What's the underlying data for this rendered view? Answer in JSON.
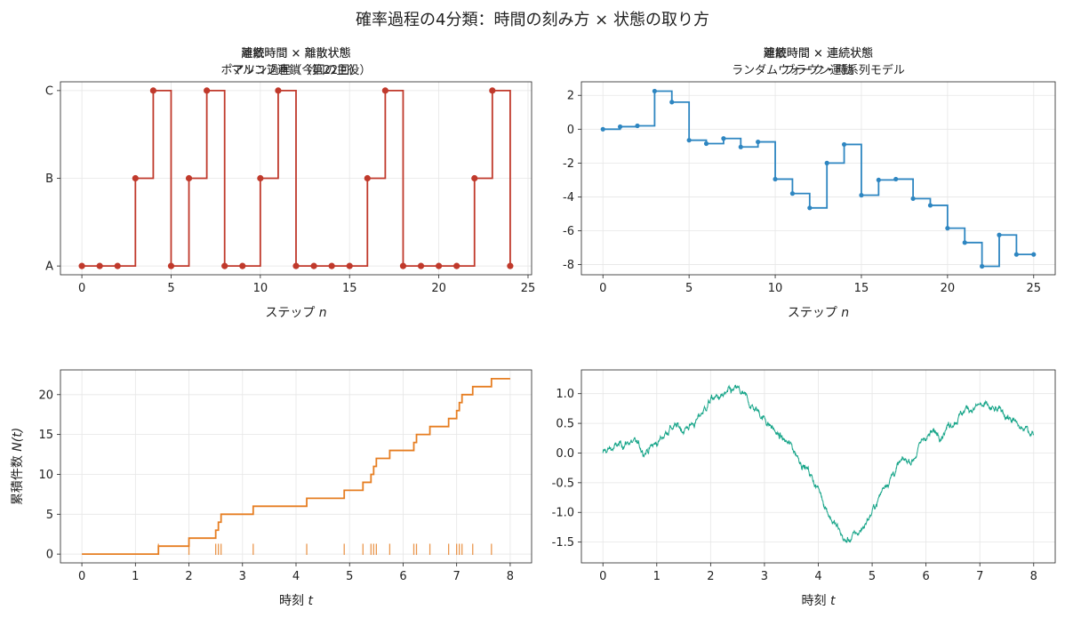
{
  "suptitle": "確率過程の4分類：時間の刻み方 × 状態の取り方",
  "chart_data": [
    {
      "type": "line",
      "step": true,
      "markers": true,
      "title": "離散時間 × 離散状態",
      "subtitle": "マルコフ連鎖（第22回）",
      "xlabel": "ステップ",
      "xlabel_var": "n",
      "ylabel": "",
      "xlim": [
        -1.2,
        25.2
      ],
      "ylim": [
        -0.1,
        2.1
      ],
      "xticks": [
        0,
        5,
        10,
        15,
        20,
        25
      ],
      "yticks": [
        0,
        1,
        2
      ],
      "ytick_labels": [
        "A",
        "B",
        "C"
      ],
      "grid": true,
      "color": "#c0392b",
      "x": [
        0,
        1,
        2,
        3,
        4,
        5,
        6,
        7,
        8,
        9,
        10,
        11,
        12,
        13,
        14,
        15,
        16,
        17,
        18,
        19,
        20,
        21,
        22,
        23,
        24
      ],
      "y": [
        0,
        0,
        0,
        1,
        2,
        0,
        1,
        2,
        0,
        0,
        1,
        2,
        0,
        0,
        0,
        0,
        1,
        2,
        0,
        0,
        0,
        0,
        1,
        2,
        0
      ]
    },
    {
      "type": "line",
      "step": true,
      "markers": true,
      "title": "離散時間 × 連続状態",
      "subtitle": "ランダムウォーク・時系列モデル",
      "xlabel": "ステップ",
      "xlabel_var": "n",
      "ylabel": "",
      "xlim": [
        -1.25,
        26.25
      ],
      "ylim": [
        -8.6,
        2.8
      ],
      "xticks": [
        0,
        5,
        10,
        15,
        20,
        25
      ],
      "yticks": [
        2,
        0,
        -2,
        -4,
        -6,
        -8
      ],
      "grid": true,
      "color": "#2e86c1",
      "x": [
        0,
        1,
        2,
        3,
        4,
        5,
        6,
        7,
        8,
        9,
        10,
        11,
        12,
        13,
        14,
        15,
        16,
        17,
        18,
        19,
        20,
        21,
        22,
        23,
        24,
        25
      ],
      "y": [
        0,
        0.15,
        0.2,
        2.25,
        1.6,
        -0.65,
        -0.85,
        -0.55,
        -1.05,
        -0.75,
        -2.95,
        -3.8,
        -4.65,
        -2.0,
        -0.9,
        -3.9,
        -3.0,
        -2.95,
        -4.1,
        -4.5,
        -5.85,
        -6.7,
        -8.1,
        -6.25,
        -7.4,
        -7.4
      ]
    },
    {
      "type": "line",
      "step": true,
      "title": "連続時間 × 離散状態",
      "subtitle": "ポアソン過程（今回の主役）",
      "xlabel": "時刻",
      "xlabel_var": "t",
      "ylabel": "累積件数",
      "ylabel_var": "N(t)",
      "xlim": [
        -0.4,
        8.4
      ],
      "ylim": [
        -1.1,
        23.1
      ],
      "xticks": [
        0,
        1,
        2,
        3,
        4,
        5,
        6,
        7,
        8
      ],
      "yticks": [
        0,
        5,
        10,
        15,
        20
      ],
      "grid": true,
      "color": "#e67e22",
      "rug": true,
      "event_times": [
        1.43,
        2.0,
        2.5,
        2.55,
        2.6,
        3.2,
        4.2,
        4.9,
        5.25,
        5.4,
        5.45,
        5.5,
        5.75,
        6.2,
        6.25,
        6.5,
        6.85,
        7.0,
        7.05,
        7.1,
        7.3,
        7.65
      ],
      "x_end": 8.0,
      "final_count": 22
    },
    {
      "type": "line",
      "title": "連続時間 × 連続状態",
      "subtitle": "ブラウン運動",
      "xlabel": "時刻",
      "xlabel_var": "t",
      "ylabel": "",
      "xlim": [
        -0.4,
        8.4
      ],
      "ylim": [
        -1.85,
        1.4
      ],
      "xticks": [
        0,
        1,
        2,
        3,
        4,
        5,
        6,
        7,
        8
      ],
      "yticks": [
        1.0,
        0.5,
        0.0,
        -0.5,
        -1.0,
        -1.5
      ],
      "ytick_labels": [
        "1.0",
        "0.5",
        "0.0",
        "-0.5",
        "-1.0",
        "-1.5"
      ],
      "grid": true,
      "color": "#17a589",
      "x": [
        0,
        0.25,
        0.5,
        0.75,
        1.0,
        1.25,
        1.5,
        1.75,
        2.0,
        2.25,
        2.5,
        2.75,
        3.0,
        3.25,
        3.5,
        3.75,
        4.0,
        4.25,
        4.5,
        4.75,
        5.0,
        5.25,
        5.5,
        5.75,
        6.0,
        6.25,
        6.5,
        6.75,
        7.0,
        7.25,
        7.5,
        7.75,
        8.0
      ],
      "y": [
        0.0,
        0.1,
        0.2,
        0.05,
        0.15,
        0.45,
        0.4,
        0.55,
        0.9,
        0.95,
        1.05,
        0.8,
        0.6,
        0.3,
        0.1,
        -0.2,
        -0.6,
        -1.1,
        -1.5,
        -1.35,
        -1.0,
        -0.5,
        -0.2,
        -0.1,
        0.3,
        0.35,
        0.55,
        0.75,
        0.8,
        0.7,
        0.65,
        0.4,
        0.35
      ],
      "path_type": "brownian-sample"
    }
  ]
}
